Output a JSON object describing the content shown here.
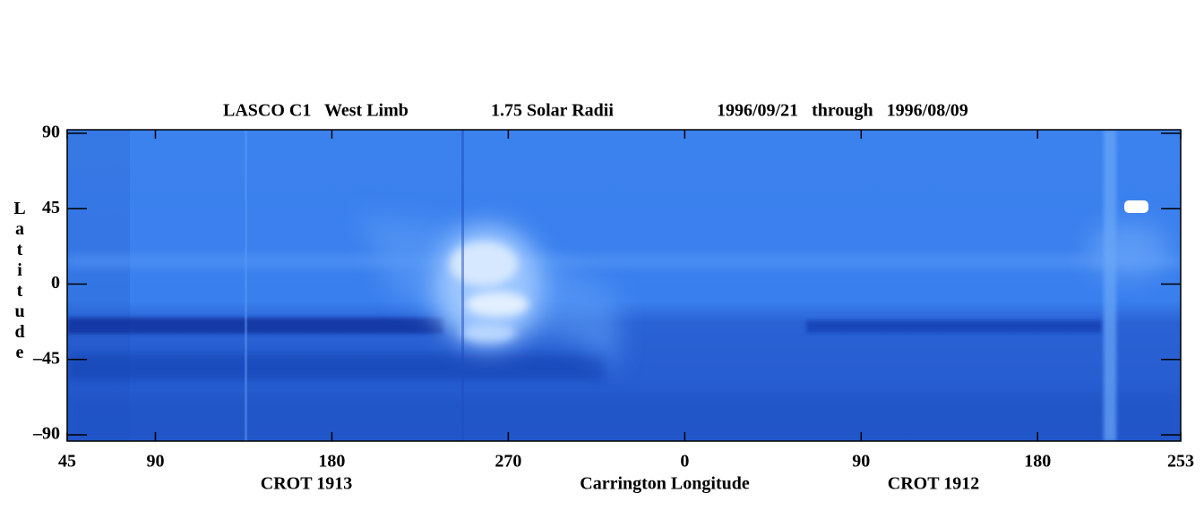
{
  "chart_data": {
    "type": "heatmap",
    "title": [
      "LASCO C1   West Limb",
      "1.75 Solar Radii",
      "1996/09/21   through   1996/08/09"
    ],
    "xlabel": "Carrington Longitude",
    "annotations": [
      "CROT 1913",
      "CROT 1912"
    ],
    "ylabel": "Latitude",
    "xlim": [
      45,
      613
    ],
    "xticks": [
      45,
      90,
      180,
      270,
      {
        "value": 360,
        "label": "0"
      },
      {
        "value": 450,
        "label": "90"
      },
      {
        "value": 540,
        "label": "180"
      },
      {
        "value": 613,
        "label": "253"
      }
    ],
    "ylim": [
      -90,
      90
    ],
    "yticks": [
      90,
      45,
      0,
      {
        "value": -45,
        "label": "–45"
      },
      {
        "value": -90,
        "label": "–90"
      }
    ]
  }
}
